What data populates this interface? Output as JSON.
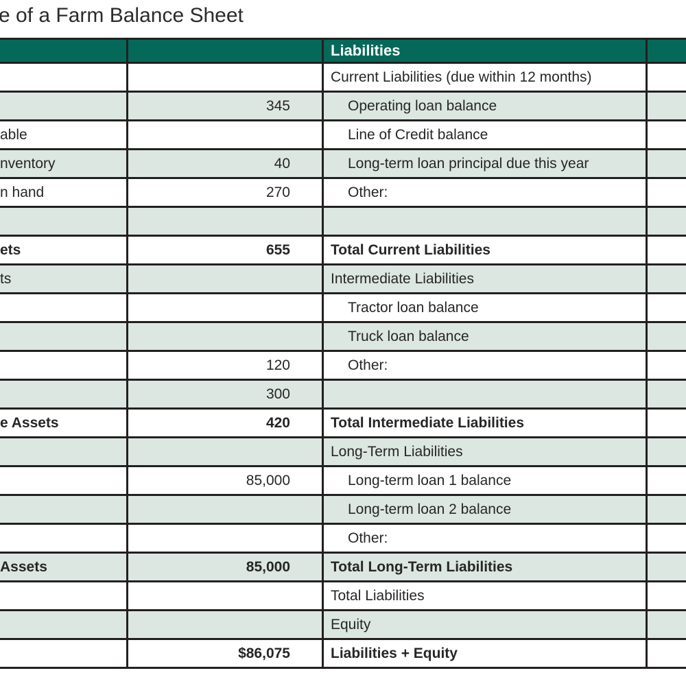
{
  "title": "e of a Farm Balance Sheet",
  "colors": {
    "header_bg": "#05695a",
    "header_text": "#ffffff",
    "row_alt_bg": "#dce7e2",
    "border": "#231f20"
  },
  "table": {
    "headers": {
      "assets": "",
      "assets_value": "",
      "liabilities": "Liabilities",
      "liabilities_value": ""
    },
    "rows": [
      {
        "asset_label": "",
        "asset_value": "",
        "liability_label": "Current Liabilities (due within 12 months)",
        "liability_value": "",
        "shade": false,
        "bold": false,
        "indent": false
      },
      {
        "asset_label": "",
        "asset_value": "345",
        "liability_label": "Operating loan balance",
        "liability_value": "",
        "shade": true,
        "bold": false,
        "indent": true
      },
      {
        "asset_label": "able",
        "asset_value": "",
        "liability_label": "Line of Credit balance",
        "liability_value": "",
        "shade": false,
        "bold": false,
        "indent": true
      },
      {
        "asset_label": "nventory",
        "asset_value": "40",
        "liability_label": "Long-term loan principal due this year",
        "liability_value": "",
        "shade": true,
        "bold": false,
        "indent": true
      },
      {
        "asset_label": "n hand",
        "asset_value": "270",
        "liability_label": "Other:",
        "liability_value": "",
        "shade": false,
        "bold": false,
        "indent": true
      },
      {
        "asset_label": "",
        "asset_value": "",
        "liability_label": "",
        "liability_value": "",
        "shade": true,
        "bold": false,
        "indent": false
      },
      {
        "asset_label": "ets",
        "asset_value": "655",
        "liability_label": "Total Current Liabilities",
        "liability_value": "",
        "shade": false,
        "bold": true,
        "indent": false
      },
      {
        "asset_label": "ts",
        "asset_value": "",
        "liability_label": "Intermediate Liabilities",
        "liability_value": "",
        "shade": true,
        "bold": false,
        "indent": false
      },
      {
        "asset_label": "",
        "asset_value": "",
        "liability_label": "Tractor loan balance",
        "liability_value": "",
        "shade": false,
        "bold": false,
        "indent": true
      },
      {
        "asset_label": "",
        "asset_value": "",
        "liability_label": "Truck loan balance",
        "liability_value": "",
        "shade": true,
        "bold": false,
        "indent": true
      },
      {
        "asset_label": "",
        "asset_value": "120",
        "liability_label": "Other:",
        "liability_value": "",
        "shade": false,
        "bold": false,
        "indent": true
      },
      {
        "asset_label": "",
        "asset_value": "300",
        "liability_label": "",
        "liability_value": "",
        "shade": true,
        "bold": false,
        "indent": false
      },
      {
        "asset_label": "e Assets",
        "asset_value": "420",
        "liability_label": "Total Intermediate Liabilities",
        "liability_value": "",
        "shade": false,
        "bold": true,
        "indent": false
      },
      {
        "asset_label": "",
        "asset_value": "",
        "liability_label": "Long-Term Liabilities",
        "liability_value": "",
        "shade": true,
        "bold": false,
        "indent": false
      },
      {
        "asset_label": "",
        "asset_value": "85,000",
        "liability_label": "Long-term loan 1 balance",
        "liability_value": "",
        "shade": false,
        "bold": false,
        "indent": true
      },
      {
        "asset_label": "",
        "asset_value": "",
        "liability_label": "Long-term loan 2 balance",
        "liability_value": "",
        "shade": true,
        "bold": false,
        "indent": true
      },
      {
        "asset_label": "",
        "asset_value": "",
        "liability_label": "Other:",
        "liability_value": "",
        "shade": false,
        "bold": false,
        "indent": true
      },
      {
        "asset_label": "Assets",
        "asset_value": "85,000",
        "liability_label": "Total Long-Term Liabilities",
        "liability_value": "",
        "shade": true,
        "bold": true,
        "indent": false
      },
      {
        "asset_label": "",
        "asset_value": "",
        "liability_label": "Total Liabilities",
        "liability_value": "",
        "shade": false,
        "bold": false,
        "indent": false
      },
      {
        "asset_label": "",
        "asset_value": "",
        "liability_label": "Equity",
        "liability_value": "",
        "shade": true,
        "bold": false,
        "indent": false
      },
      {
        "asset_label": "",
        "asset_value": "$86,075",
        "liability_label": "Liabilities + Equity",
        "liability_value": "",
        "shade": false,
        "bold": true,
        "indent": false
      }
    ]
  }
}
